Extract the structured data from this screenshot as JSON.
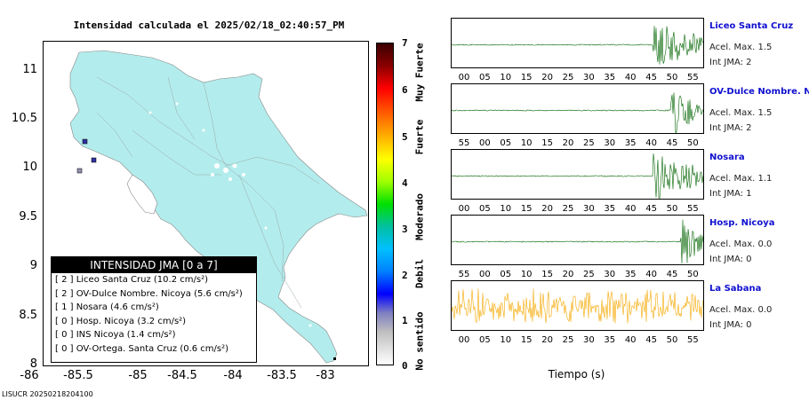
{
  "title": "Intensidad calculada el 2025/02/18_02:40:57_PM",
  "footer_id": "LISUCR 20250218204100",
  "map": {
    "y_ticks": [
      "11",
      "10.5",
      "10",
      "9.5",
      "9",
      "8.5",
      "8"
    ],
    "x_ticks": [
      "-86",
      "-85.5",
      "-85",
      "-84.5",
      "-84",
      "-83.5",
      "-83"
    ],
    "land_color": "#b3ecec"
  },
  "colorbar": {
    "ticks": [
      "7",
      "6",
      "5",
      "4",
      "3",
      "2",
      "1",
      "0"
    ],
    "labels": [
      "Muy Fuerte",
      "Fuerte",
      "Moderado",
      "Debil",
      "No sentido"
    ]
  },
  "legend": {
    "title": "INTENSIDAD JMA [0 a 7]",
    "rows": [
      "[ 2 ]  Liceo Santa Cruz (10.2 cm/s²)",
      "[ 2 ]  OV-Dulce Nombre. Nicoya (5.6 cm/s²)",
      "[ 1 ]  Nosara (4.6 cm/s²)",
      "[ 0 ]  Hosp. Nicoya (3.2 cm/s²)",
      "[ 0 ]  INS Nicoya (1.4 cm/s²)",
      "[ 0 ]  OV-Ortega. Santa Cruz (0.6 cm/s²)"
    ]
  },
  "stations": [
    {
      "name": "Liceo Santa Cruz",
      "acel": "Acel. Max. 1.5",
      "int": "Int JMA: 2",
      "color": "#006400",
      "ticks": [
        "00",
        "05",
        "10",
        "15",
        "20",
        "25",
        "30",
        "35",
        "40",
        "45",
        "50",
        "55"
      ],
      "tick_offset": "00"
    },
    {
      "name": "OV-Dulce Nombre. Nicoya",
      "acel": "Acel. Max. 1.5",
      "int": "Int JMA: 2",
      "color": "#006400",
      "ticks": [
        "55",
        "00",
        "05",
        "10",
        "15",
        "20",
        "25",
        "30",
        "35",
        "40",
        "45",
        "50"
      ],
      "tick_offset": "55"
    },
    {
      "name": "Nosara",
      "acel": "Acel. Max. 1.1",
      "int": "Int JMA: 1",
      "color": "#006400",
      "ticks": [
        "00",
        "05",
        "10",
        "15",
        "20",
        "25",
        "30",
        "35",
        "40",
        "45",
        "50",
        "55"
      ],
      "tick_offset": "00"
    },
    {
      "name": "Hosp. Nicoya",
      "acel": "Acel. Max. 0.0",
      "int": "Int JMA: 0",
      "color": "#006400",
      "ticks": [
        "55",
        "00",
        "05",
        "10",
        "15",
        "20",
        "25",
        "30",
        "35",
        "40",
        "45",
        "50"
      ],
      "tick_offset": "55"
    },
    {
      "name": "La Sabana",
      "acel": "Acel. Max. 0.0",
      "int": "Int JMA: 0",
      "color": "#f5a800",
      "ticks": [
        "00",
        "05",
        "10",
        "15",
        "20",
        "25",
        "30",
        "35",
        "40",
        "45",
        "50",
        "55"
      ],
      "tick_offset": "00"
    }
  ],
  "xlabel": "Tiempo (s)"
}
